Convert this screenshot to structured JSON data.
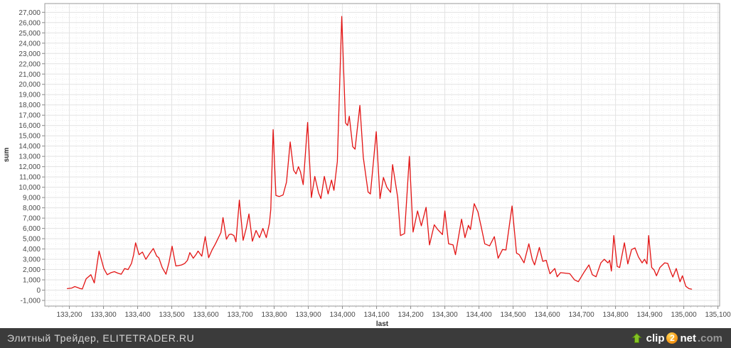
{
  "footer": {
    "text": "Элитный Трейдер, ELITETRADER.RU",
    "background": "#3b3b3b",
    "text_color": "#d4d4d4",
    "logo": {
      "clip": "clip",
      "two": "2",
      "net": "net",
      "com": ".com",
      "arrow_color": "#84c225",
      "arrow_outline": "#4e7a12",
      "badge_color": "#ef8a00"
    }
  },
  "chart_data": {
    "type": "line",
    "title": "",
    "xlabel": "last",
    "ylabel": "sum",
    "legend": null,
    "grid": "major-solid-minor-dotted",
    "series_color": "#e31414",
    "axis_text_color": "#4a4a4a",
    "grid_major_color": "#e3e3e3",
    "grid_minor_color": "#ededed",
    "plot_border_color": "#9a9a9a",
    "xlim": [
      133128,
      135105
    ],
    "ylim": [
      -1550,
      27850
    ],
    "x_ticks": [
      133200,
      133300,
      133400,
      133500,
      133600,
      133700,
      133800,
      133900,
      134000,
      134100,
      134200,
      134300,
      134400,
      134500,
      134600,
      134700,
      134800,
      134900,
      135000,
      135100
    ],
    "y_ticks": [
      -1000,
      0,
      1000,
      2000,
      3000,
      4000,
      5000,
      6000,
      7000,
      8000,
      9000,
      10000,
      11000,
      12000,
      13000,
      14000,
      15000,
      16000,
      17000,
      18000,
      19000,
      20000,
      21000,
      22000,
      23000,
      24000,
      25000,
      26000,
      27000
    ],
    "x_minor_step": 20,
    "y_minor_step": 500,
    "series": [
      {
        "name": "sum",
        "points": [
          [
            133194,
            150
          ],
          [
            133207,
            200
          ],
          [
            133216,
            350
          ],
          [
            133224,
            250
          ],
          [
            133232,
            150
          ],
          [
            133238,
            120
          ],
          [
            133249,
            1100
          ],
          [
            133256,
            1300
          ],
          [
            133263,
            1500
          ],
          [
            133273,
            700
          ],
          [
            133287,
            3800
          ],
          [
            133301,
            2100
          ],
          [
            133311,
            1500
          ],
          [
            133322,
            1700
          ],
          [
            133332,
            1800
          ],
          [
            133342,
            1650
          ],
          [
            133352,
            1550
          ],
          [
            133362,
            2100
          ],
          [
            133372,
            2000
          ],
          [
            133382,
            2600
          ],
          [
            133388,
            3400
          ],
          [
            133394,
            4600
          ],
          [
            133404,
            3450
          ],
          [
            133414,
            3700
          ],
          [
            133424,
            3000
          ],
          [
            133434,
            3500
          ],
          [
            133446,
            4050
          ],
          [
            133456,
            3300
          ],
          [
            133462,
            3150
          ],
          [
            133472,
            2200
          ],
          [
            133483,
            1550
          ],
          [
            133492,
            2700
          ],
          [
            133501,
            4270
          ],
          [
            133512,
            2350
          ],
          [
            133522,
            2400
          ],
          [
            133529,
            2450
          ],
          [
            133538,
            2600
          ],
          [
            133546,
            2900
          ],
          [
            133553,
            3650
          ],
          [
            133563,
            3100
          ],
          [
            133572,
            3500
          ],
          [
            133577,
            3800
          ],
          [
            133588,
            3300
          ],
          [
            133598,
            5200
          ],
          [
            133608,
            3150
          ],
          [
            133618,
            3900
          ],
          [
            133628,
            4500
          ],
          [
            133633,
            4850
          ],
          [
            133644,
            5600
          ],
          [
            133650,
            7050
          ],
          [
            133660,
            4950
          ],
          [
            133668,
            5400
          ],
          [
            133674,
            5450
          ],
          [
            133682,
            5300
          ],
          [
            133688,
            4700
          ],
          [
            133698,
            8750
          ],
          [
            133709,
            4850
          ],
          [
            133718,
            6000
          ],
          [
            133726,
            7400
          ],
          [
            133736,
            4750
          ],
          [
            133747,
            5800
          ],
          [
            133757,
            5100
          ],
          [
            133767,
            6000
          ],
          [
            133777,
            5100
          ],
          [
            133786,
            6500
          ],
          [
            133790,
            7850
          ],
          [
            133797,
            15600
          ],
          [
            133805,
            9200
          ],
          [
            133815,
            9100
          ],
          [
            133826,
            9250
          ],
          [
            133836,
            10500
          ],
          [
            133847,
            14400
          ],
          [
            133857,
            11650
          ],
          [
            133864,
            11300
          ],
          [
            133871,
            12000
          ],
          [
            133877,
            11500
          ],
          [
            133885,
            10250
          ],
          [
            133898,
            16300
          ],
          [
            133909,
            9000
          ],
          [
            133919,
            11050
          ],
          [
            133930,
            9450
          ],
          [
            133937,
            8900
          ],
          [
            133947,
            11050
          ],
          [
            133958,
            9350
          ],
          [
            133968,
            10700
          ],
          [
            133975,
            9700
          ],
          [
            133985,
            12500
          ],
          [
            133998,
            26600
          ],
          [
            134009,
            16250
          ],
          [
            134015,
            16000
          ],
          [
            134020,
            16900
          ],
          [
            134030,
            13950
          ],
          [
            134037,
            13700
          ],
          [
            134051,
            17950
          ],
          [
            134061,
            12900
          ],
          [
            134075,
            9550
          ],
          [
            134082,
            9350
          ],
          [
            134099,
            15400
          ],
          [
            134110,
            8900
          ],
          [
            134120,
            10950
          ],
          [
            134130,
            10000
          ],
          [
            134141,
            9500
          ],
          [
            134147,
            12200
          ],
          [
            134162,
            9000
          ],
          [
            134170,
            5300
          ],
          [
            134182,
            5500
          ],
          [
            134196,
            13000
          ],
          [
            134207,
            5650
          ],
          [
            134220,
            7700
          ],
          [
            134231,
            6250
          ],
          [
            134245,
            8050
          ],
          [
            134255,
            4400
          ],
          [
            134269,
            6350
          ],
          [
            134279,
            5900
          ],
          [
            134293,
            5400
          ],
          [
            134300,
            7700
          ],
          [
            134311,
            4500
          ],
          [
            134324,
            4400
          ],
          [
            134331,
            3450
          ],
          [
            134349,
            6900
          ],
          [
            134359,
            5100
          ],
          [
            134369,
            6300
          ],
          [
            134375,
            5900
          ],
          [
            134386,
            8400
          ],
          [
            134397,
            7600
          ],
          [
            134407,
            6100
          ],
          [
            134417,
            4500
          ],
          [
            134431,
            4300
          ],
          [
            134445,
            5200
          ],
          [
            134456,
            3100
          ],
          [
            134469,
            3950
          ],
          [
            134479,
            3900
          ],
          [
            134497,
            8180
          ],
          [
            134510,
            3600
          ],
          [
            134518,
            3450
          ],
          [
            134532,
            2650
          ],
          [
            134546,
            4500
          ],
          [
            134556,
            3000
          ],
          [
            134563,
            2450
          ],
          [
            134577,
            4150
          ],
          [
            134587,
            2800
          ],
          [
            134597,
            2900
          ],
          [
            134608,
            1600
          ],
          [
            134622,
            2100
          ],
          [
            134629,
            1300
          ],
          [
            134639,
            1700
          ],
          [
            134653,
            1650
          ],
          [
            134666,
            1600
          ],
          [
            134680,
            1000
          ],
          [
            134691,
            820
          ],
          [
            134708,
            1750
          ],
          [
            134722,
            2450
          ],
          [
            134732,
            1500
          ],
          [
            134743,
            1300
          ],
          [
            134757,
            2650
          ],
          [
            134767,
            3000
          ],
          [
            134778,
            2650
          ],
          [
            134783,
            2900
          ],
          [
            134788,
            1850
          ],
          [
            134795,
            5300
          ],
          [
            134805,
            2300
          ],
          [
            134812,
            2200
          ],
          [
            134826,
            4600
          ],
          [
            134836,
            2550
          ],
          [
            134847,
            3950
          ],
          [
            134857,
            4100
          ],
          [
            134867,
            3230
          ],
          [
            134878,
            2650
          ],
          [
            134885,
            3000
          ],
          [
            134892,
            2550
          ],
          [
            134897,
            5300
          ],
          [
            134906,
            2200
          ],
          [
            134913,
            1970
          ],
          [
            134920,
            1400
          ],
          [
            134930,
            2200
          ],
          [
            134944,
            2650
          ],
          [
            134953,
            2600
          ],
          [
            134961,
            1850
          ],
          [
            134968,
            1280
          ],
          [
            134978,
            2100
          ],
          [
            134989,
            820
          ],
          [
            134996,
            1400
          ],
          [
            135006,
            370
          ],
          [
            135015,
            150
          ],
          [
            135023,
            100
          ]
        ]
      }
    ]
  }
}
